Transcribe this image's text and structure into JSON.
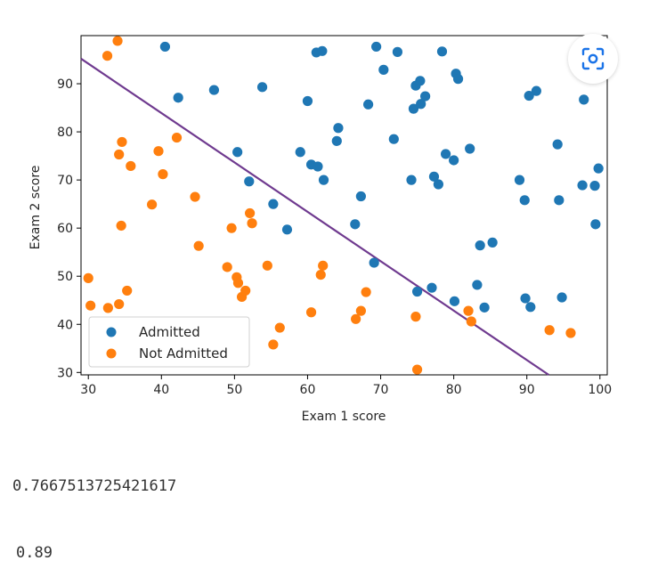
{
  "chart_data": {
    "type": "scatter",
    "xlabel": "Exam 1 score",
    "ylabel": "Exam 2 score",
    "xlim": [
      29,
      101
    ],
    "ylim": [
      29.5,
      100
    ],
    "xticks": [
      30,
      40,
      50,
      60,
      70,
      80,
      90,
      100
    ],
    "yticks": [
      30,
      40,
      50,
      60,
      70,
      80,
      90
    ],
    "legend_placement": "lower-left",
    "grid": false,
    "series": [
      {
        "name": "Admitted",
        "color": "#1f77b4",
        "points": [
          [
            40.5,
            97.7
          ],
          [
            42.3,
            87.1
          ],
          [
            47.2,
            88.7
          ],
          [
            53.8,
            89.3
          ],
          [
            50.4,
            75.8
          ],
          [
            52.0,
            69.7
          ],
          [
            55.3,
            65.0
          ],
          [
            57.2,
            59.7
          ],
          [
            59.0,
            75.8
          ],
          [
            60.0,
            86.4
          ],
          [
            60.5,
            73.2
          ],
          [
            61.2,
            96.5
          ],
          [
            61.4,
            72.8
          ],
          [
            62.0,
            96.8
          ],
          [
            62.2,
            70.0
          ],
          [
            64.0,
            78.1
          ],
          [
            64.2,
            80.8
          ],
          [
            66.5,
            60.8
          ],
          [
            67.3,
            66.6
          ],
          [
            68.3,
            85.7
          ],
          [
            69.1,
            52.8
          ],
          [
            69.4,
            97.7
          ],
          [
            70.4,
            92.9
          ],
          [
            71.8,
            78.5
          ],
          [
            72.3,
            96.6
          ],
          [
            74.2,
            70.0
          ],
          [
            74.5,
            84.8
          ],
          [
            74.8,
            89.6
          ],
          [
            75.0,
            46.8
          ],
          [
            75.4,
            90.6
          ],
          [
            75.5,
            85.8
          ],
          [
            76.1,
            87.4
          ],
          [
            77.0,
            47.6
          ],
          [
            77.3,
            70.7
          ],
          [
            77.9,
            69.1
          ],
          [
            78.4,
            96.7
          ],
          [
            78.9,
            75.4
          ],
          [
            80.0,
            74.1
          ],
          [
            80.1,
            44.8
          ],
          [
            80.3,
            92.1
          ],
          [
            80.6,
            91.0
          ],
          [
            82.2,
            76.5
          ],
          [
            83.2,
            48.2
          ],
          [
            83.6,
            56.4
          ],
          [
            84.2,
            43.5
          ],
          [
            85.3,
            57.0
          ],
          [
            89.0,
            70.0
          ],
          [
            89.7,
            65.8
          ],
          [
            89.8,
            45.4
          ],
          [
            90.3,
            87.5
          ],
          [
            90.5,
            43.6
          ],
          [
            91.3,
            88.5
          ],
          [
            94.2,
            77.4
          ],
          [
            94.4,
            65.8
          ],
          [
            94.8,
            45.6
          ],
          [
            97.6,
            68.9
          ],
          [
            97.8,
            86.7
          ],
          [
            99.3,
            68.8
          ],
          [
            99.4,
            60.8
          ],
          [
            99.8,
            72.4
          ]
        ]
      },
      {
        "name": "Not Admitted",
        "color": "#ff7f0e",
        "points": [
          [
            30.3,
            43.9
          ],
          [
            30.0,
            49.6
          ],
          [
            32.6,
            95.8
          ],
          [
            32.7,
            43.4
          ],
          [
            34.0,
            98.9
          ],
          [
            34.2,
            44.2
          ],
          [
            34.2,
            75.3
          ],
          [
            34.5,
            60.5
          ],
          [
            34.6,
            77.9
          ],
          [
            35.3,
            47.0
          ],
          [
            35.8,
            72.9
          ],
          [
            38.7,
            64.9
          ],
          [
            39.6,
            76.0
          ],
          [
            40.2,
            71.2
          ],
          [
            42.1,
            78.8
          ],
          [
            44.6,
            66.5
          ],
          [
            45.1,
            56.3
          ],
          [
            49.0,
            51.9
          ],
          [
            49.6,
            60.0
          ],
          [
            50.3,
            49.8
          ],
          [
            50.5,
            48.6
          ],
          [
            51.0,
            45.7
          ],
          [
            51.5,
            47.0
          ],
          [
            52.1,
            63.1
          ],
          [
            52.4,
            61.0
          ],
          [
            54.5,
            52.2
          ],
          [
            55.3,
            35.8
          ],
          [
            56.2,
            39.3
          ],
          [
            60.5,
            42.5
          ],
          [
            61.8,
            50.3
          ],
          [
            62.1,
            52.2
          ],
          [
            66.6,
            41.1
          ],
          [
            67.3,
            42.8
          ],
          [
            68.0,
            46.7
          ],
          [
            74.8,
            41.6
          ],
          [
            75.0,
            30.6
          ],
          [
            82.0,
            42.8
          ],
          [
            82.4,
            40.6
          ],
          [
            93.1,
            38.8
          ],
          [
            96.0,
            38.2
          ]
        ]
      }
    ],
    "decision_boundary": {
      "color": "#6f3a8f",
      "from": [
        29.0,
        95.2
      ],
      "to": [
        93.0,
        29.5
      ]
    }
  },
  "outputs": {
    "line1": "0.7667513725421617",
    "line2": "0.89"
  },
  "ui": {
    "lens_button_icon": "lens-scan-icon"
  }
}
